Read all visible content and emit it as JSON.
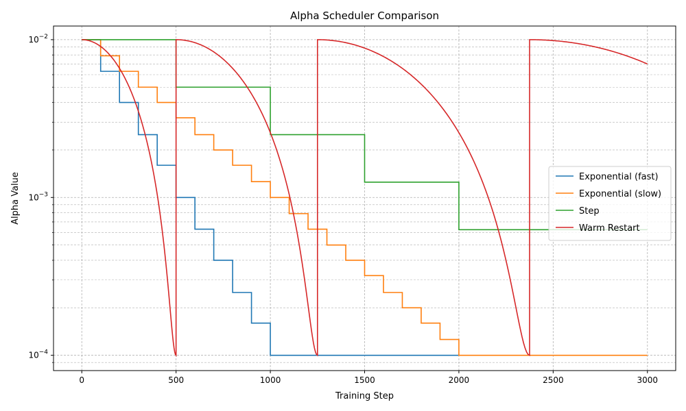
{
  "chart_data": {
    "type": "line",
    "title": "Alpha Scheduler Comparison",
    "xlabel": "Training Step",
    "ylabel": "Alpha Value",
    "xlim": [
      -150,
      3150
    ],
    "ylim": [
      8e-05,
      0.0122
    ],
    "yscale": "log",
    "grid": true,
    "legend_placement": "center-right",
    "x_ticks": [
      0,
      500,
      1000,
      1500,
      2000,
      2500,
      3000
    ],
    "x_tick_labels": [
      "0",
      "500",
      "1000",
      "1500",
      "2000",
      "2500",
      "3000"
    ],
    "y_ticks": [
      0.0001,
      0.001,
      0.01
    ],
    "y_tick_labels": [
      {
        "base": "10",
        "exp": "−4"
      },
      {
        "base": "10",
        "exp": "−3"
      },
      {
        "base": "10",
        "exp": "−2"
      }
    ],
    "series": [
      {
        "name": "Exponential (fast)",
        "color": "#1f77b4",
        "kind": "step",
        "steps": [
          {
            "x": 0,
            "y": 0.01
          },
          {
            "x": 100,
            "y": 0.0063
          },
          {
            "x": 200,
            "y": 0.004
          },
          {
            "x": 300,
            "y": 0.0025
          },
          {
            "x": 400,
            "y": 0.0016
          },
          {
            "x": 500,
            "y": 0.001
          },
          {
            "x": 600,
            "y": 0.00063
          },
          {
            "x": 700,
            "y": 0.0004
          },
          {
            "x": 800,
            "y": 0.00025
          },
          {
            "x": 900,
            "y": 0.00016
          },
          {
            "x": 1000,
            "y": 0.0001
          }
        ],
        "end_x": 2000
      },
      {
        "name": "Exponential (slow)",
        "color": "#ff7f0e",
        "kind": "step",
        "steps": [
          {
            "x": 0,
            "y": 0.01
          },
          {
            "x": 100,
            "y": 0.0079
          },
          {
            "x": 200,
            "y": 0.0063
          },
          {
            "x": 300,
            "y": 0.005
          },
          {
            "x": 400,
            "y": 0.004
          },
          {
            "x": 500,
            "y": 0.0032
          },
          {
            "x": 600,
            "y": 0.0025
          },
          {
            "x": 700,
            "y": 0.002
          },
          {
            "x": 800,
            "y": 0.0016
          },
          {
            "x": 900,
            "y": 0.00126
          },
          {
            "x": 1000,
            "y": 0.001
          },
          {
            "x": 1100,
            "y": 0.00079
          },
          {
            "x": 1200,
            "y": 0.00063
          },
          {
            "x": 1300,
            "y": 0.0005
          },
          {
            "x": 1400,
            "y": 0.0004
          },
          {
            "x": 1500,
            "y": 0.00032
          },
          {
            "x": 1600,
            "y": 0.00025
          },
          {
            "x": 1700,
            "y": 0.0002
          },
          {
            "x": 1800,
            "y": 0.00016
          },
          {
            "x": 1900,
            "y": 0.000126
          },
          {
            "x": 2000,
            "y": 0.0001
          }
        ],
        "end_x": 3000
      },
      {
        "name": "Step",
        "color": "#2ca02c",
        "kind": "step",
        "steps": [
          {
            "x": 0,
            "y": 0.01
          },
          {
            "x": 500,
            "y": 0.005
          },
          {
            "x": 1000,
            "y": 0.0025
          },
          {
            "x": 1500,
            "y": 0.00125
          },
          {
            "x": 2000,
            "y": 0.000625
          }
        ],
        "end_x": 3000
      },
      {
        "name": "Warm Restart",
        "color": "#d62728",
        "kind": "cosine_restart",
        "max": 0.01,
        "min": 0.0001,
        "cycles": [
          {
            "start": 0,
            "length": 500
          },
          {
            "start": 500,
            "length": 750
          },
          {
            "start": 1250,
            "length": 1125
          },
          {
            "start": 2375,
            "length": 1687.5
          }
        ],
        "end_x": 3000
      }
    ]
  }
}
